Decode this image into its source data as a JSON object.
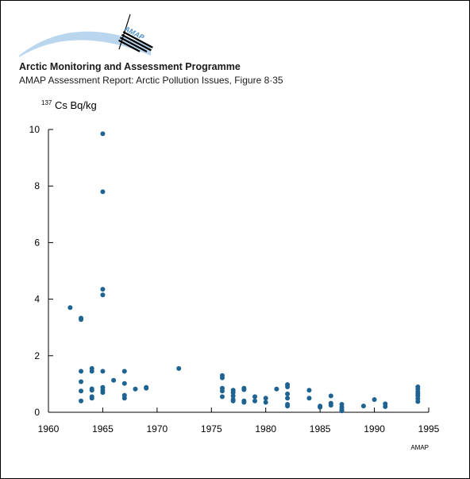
{
  "header": {
    "logo_text": "AMAP",
    "organization": "Arctic Monitoring and Assessment Programme",
    "report": "AMAP Assessment Report: Arctic Pollution Issues, Figure 8·35"
  },
  "colors": {
    "points": "#1e6391",
    "logo_arc": "#b9d6ee",
    "logo_text": "#4a90c8"
  },
  "chart_data": {
    "type": "scatter",
    "title": "",
    "ylabel_sup": "137",
    "ylabel_main": "Cs Bq/kg",
    "xlabel": "",
    "xlim": [
      1960,
      1995
    ],
    "ylim": [
      0,
      10
    ],
    "xticks": [
      1960,
      1965,
      1970,
      1975,
      1980,
      1985,
      1990,
      1995
    ],
    "yticks": [
      0,
      2,
      4,
      6,
      8,
      10
    ],
    "grid": false,
    "credit": "AMAP",
    "points": [
      [
        1962,
        3.7
      ],
      [
        1963,
        3.33
      ],
      [
        1963,
        3.28
      ],
      [
        1963,
        1.45
      ],
      [
        1963,
        1.08
      ],
      [
        1963,
        0.75
      ],
      [
        1963,
        0.4
      ],
      [
        1964,
        1.55
      ],
      [
        1964,
        1.45
      ],
      [
        1964,
        0.83
      ],
      [
        1964,
        0.78
      ],
      [
        1964,
        0.55
      ],
      [
        1964,
        0.5
      ],
      [
        1965,
        9.85
      ],
      [
        1965,
        7.8
      ],
      [
        1965,
        4.35
      ],
      [
        1965,
        4.15
      ],
      [
        1965,
        1.45
      ],
      [
        1965,
        0.88
      ],
      [
        1965,
        0.78
      ],
      [
        1965,
        0.7
      ],
      [
        1966,
        1.13
      ],
      [
        1967,
        1.45
      ],
      [
        1967,
        1.02
      ],
      [
        1967,
        0.6
      ],
      [
        1967,
        0.5
      ],
      [
        1968,
        0.82
      ],
      [
        1969,
        0.88
      ],
      [
        1969,
        0.85
      ],
      [
        1972,
        1.55
      ],
      [
        1976,
        1.3
      ],
      [
        1976,
        1.22
      ],
      [
        1976,
        0.85
      ],
      [
        1976,
        0.75
      ],
      [
        1976,
        0.55
      ],
      [
        1977,
        0.78
      ],
      [
        1977,
        0.7
      ],
      [
        1977,
        0.58
      ],
      [
        1977,
        0.45
      ],
      [
        1977,
        0.4
      ],
      [
        1978,
        0.85
      ],
      [
        1978,
        0.8
      ],
      [
        1978,
        0.4
      ],
      [
        1978,
        0.35
      ],
      [
        1979,
        0.55
      ],
      [
        1979,
        0.4
      ],
      [
        1980,
        0.5
      ],
      [
        1980,
        0.35
      ],
      [
        1981,
        0.82
      ],
      [
        1982,
        0.98
      ],
      [
        1982,
        0.9
      ],
      [
        1982,
        0.65
      ],
      [
        1982,
        0.5
      ],
      [
        1982,
        0.28
      ],
      [
        1982,
        0.22
      ],
      [
        1984,
        0.78
      ],
      [
        1984,
        0.5
      ],
      [
        1985,
        0.22
      ],
      [
        1985,
        0.18
      ],
      [
        1986,
        0.58
      ],
      [
        1986,
        0.32
      ],
      [
        1986,
        0.25
      ],
      [
        1987,
        0.28
      ],
      [
        1987,
        0.18
      ],
      [
        1987,
        0.1
      ],
      [
        1987,
        0.05
      ],
      [
        1989,
        0.22
      ],
      [
        1990,
        0.45
      ],
      [
        1991,
        0.3
      ],
      [
        1991,
        0.2
      ],
      [
        1994,
        0.9
      ],
      [
        1994,
        0.82
      ],
      [
        1994,
        0.72
      ],
      [
        1994,
        0.65
      ],
      [
        1994,
        0.58
      ],
      [
        1994,
        0.48
      ],
      [
        1994,
        0.38
      ]
    ]
  }
}
